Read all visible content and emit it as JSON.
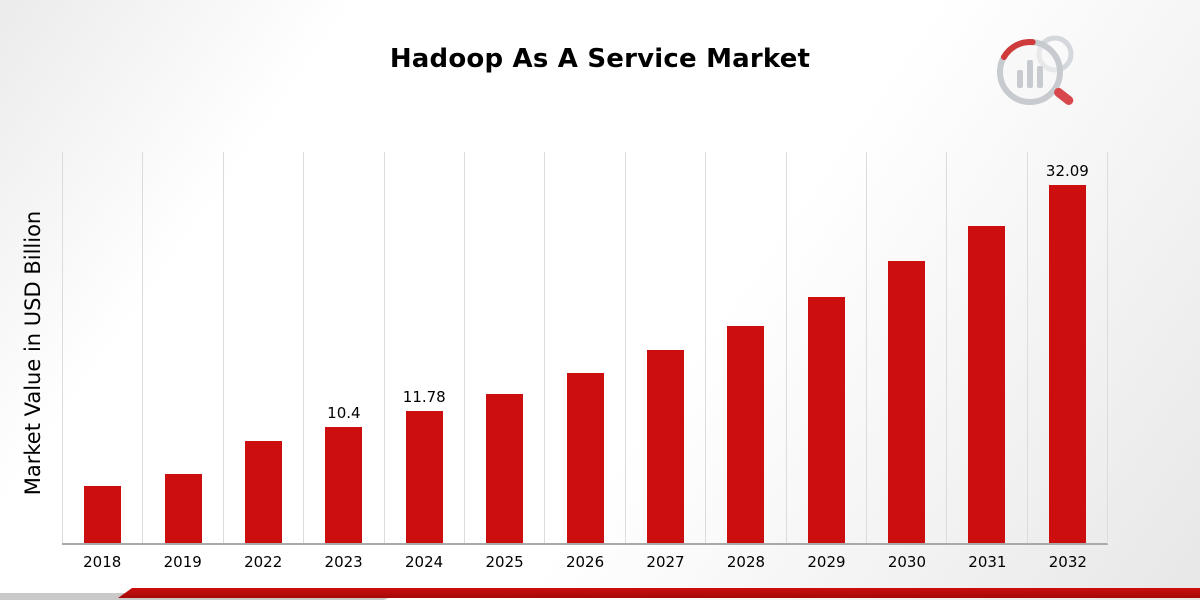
{
  "title": "Hadoop As A Service Market",
  "y_axis_label": "Market Value in USD Billion",
  "chart_data": {
    "type": "bar",
    "title": "Hadoop As A Service Market",
    "xlabel": "",
    "ylabel": "Market Value in USD Billion",
    "categories": [
      "2018",
      "2019",
      "2022",
      "2023",
      "2024",
      "2025",
      "2026",
      "2027",
      "2028",
      "2029",
      "2030",
      "2031",
      "2032"
    ],
    "values": [
      5.1,
      6.2,
      9.1,
      10.4,
      11.78,
      13.3,
      15.2,
      17.3,
      19.4,
      22.0,
      25.2,
      28.4,
      32.09
    ],
    "value_labels": [
      "",
      "",
      "",
      "10.4",
      "11.78",
      "",
      "",
      "",
      "",
      "",
      "",
      "",
      "32.09"
    ],
    "ylim": [
      0,
      35
    ],
    "grid": "vertical",
    "legend": "none",
    "bar_color": "#cc0e0e"
  },
  "colors": {
    "bar": "#cc0e0e",
    "gridline": "#dcdcdc",
    "baseline": "#a9a9a9",
    "accent_stripe": "#b30a0a"
  },
  "icons": {
    "brand_logo": "bar-chart-magnifier-logo"
  }
}
